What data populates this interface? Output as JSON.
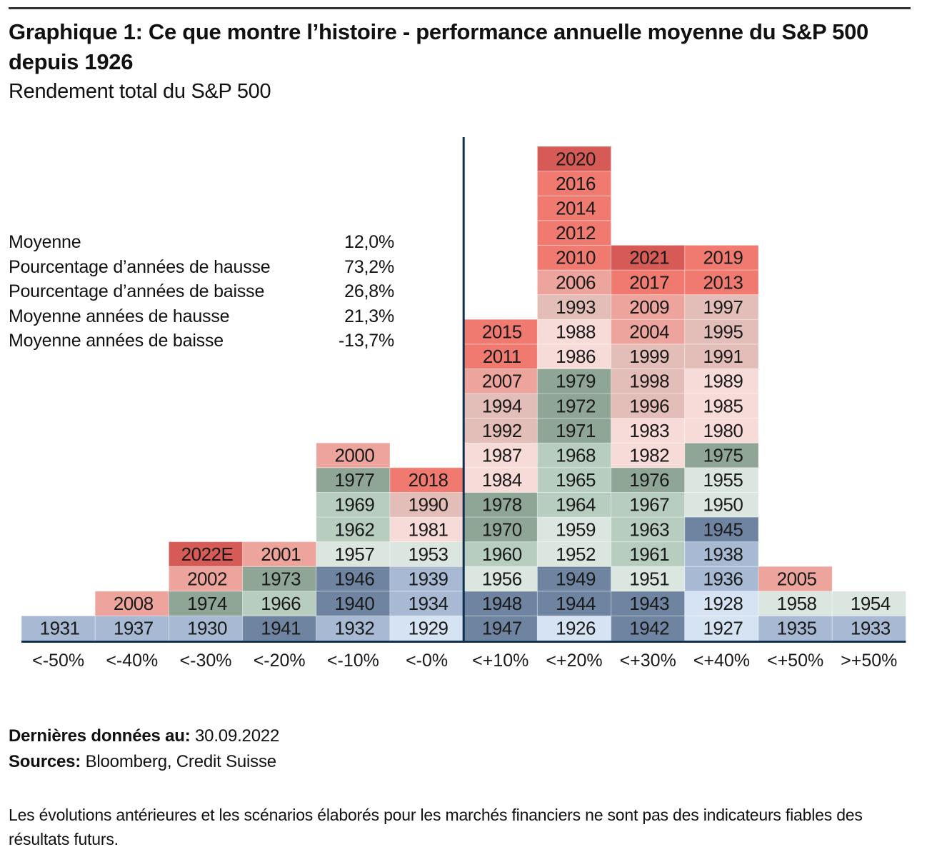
{
  "header": {
    "title": "Graphique 1: Ce que montre l’histoire - performance annuelle moyenne du S&P 500 depuis 1926",
    "subtitle": "Rendement total du S&P 500"
  },
  "stats": [
    {
      "label": "Moyenne",
      "value": "12,0%"
    },
    {
      "label": "Pourcentage d’années de hausse",
      "value": "73,2%"
    },
    {
      "label": "Pourcentage d’années de baisse",
      "value": "26,8%"
    },
    {
      "label": "Moyenne années de hausse",
      "value": "21,3%"
    },
    {
      "label": "Moyenne années de baisse",
      "value": "-13,7%"
    }
  ],
  "palette": {
    "redD": "#d65a55",
    "red": "#f07a70",
    "pinkM": "#eda49d",
    "pinkL": "#e3bdb7",
    "pinkXL": "#f7dbd8",
    "greenD": "#8fa596",
    "greenL": "#b7cdc0",
    "greenXL": "#dbe6e0",
    "blueD": "#6e84a0",
    "blueL": "#a7b9d3",
    "blueXL": "#d6e3f3",
    "axis": "#0f2f4f"
  },
  "chart_data": {
    "type": "table",
    "title": "Rendement total du S&P 500",
    "categories": [
      "<-50%",
      "<-40%",
      "<-30%",
      "<-20%",
      "<-10%",
      "<-0%",
      "<+10%",
      "<+20%",
      "<+30%",
      "<+40%",
      "<+50%",
      ">+50%"
    ],
    "columns": [
      [
        [
          "1931",
          "blueL"
        ]
      ],
      [
        [
          "1937",
          "blueL"
        ],
        [
          "2008",
          "pinkM"
        ]
      ],
      [
        [
          "1930",
          "blueL"
        ],
        [
          "1974",
          "greenD"
        ],
        [
          "2002",
          "pinkM"
        ],
        [
          "2022E",
          "redD"
        ]
      ],
      [
        [
          "1941",
          "blueD"
        ],
        [
          "1966",
          "greenL"
        ],
        [
          "1973",
          "greenD"
        ],
        [
          "2001",
          "pinkM"
        ]
      ],
      [
        [
          "1932",
          "blueL"
        ],
        [
          "1940",
          "blueD"
        ],
        [
          "1946",
          "blueD"
        ],
        [
          "1957",
          "greenXL"
        ],
        [
          "1962",
          "greenL"
        ],
        [
          "1969",
          "greenL"
        ],
        [
          "1977",
          "greenD"
        ],
        [
          "2000",
          "pinkM"
        ]
      ],
      [
        [
          "1929",
          "blueXL"
        ],
        [
          "1934",
          "blueL"
        ],
        [
          "1939",
          "blueL"
        ],
        [
          "1953",
          "greenXL"
        ],
        [
          "1981",
          "pinkXL"
        ],
        [
          "1990",
          "pinkL"
        ],
        [
          "2018",
          "red"
        ]
      ],
      [
        [
          "1947",
          "blueD"
        ],
        [
          "1948",
          "blueD"
        ],
        [
          "1956",
          "greenXL"
        ],
        [
          "1960",
          "greenL"
        ],
        [
          "1970",
          "greenD"
        ],
        [
          "1978",
          "greenD"
        ],
        [
          "1984",
          "pinkXL"
        ],
        [
          "1987",
          "pinkXL"
        ],
        [
          "1992",
          "pinkL"
        ],
        [
          "1994",
          "pinkL"
        ],
        [
          "2007",
          "pinkM"
        ],
        [
          "2011",
          "red"
        ],
        [
          "2015",
          "red"
        ]
      ],
      [
        [
          "1926",
          "blueXL"
        ],
        [
          "1944",
          "blueD"
        ],
        [
          "1949",
          "blueD"
        ],
        [
          "1952",
          "greenXL"
        ],
        [
          "1959",
          "greenXL"
        ],
        [
          "1964",
          "greenL"
        ],
        [
          "1965",
          "greenL"
        ],
        [
          "1968",
          "greenL"
        ],
        [
          "1971",
          "greenD"
        ],
        [
          "1972",
          "greenD"
        ],
        [
          "1979",
          "greenD"
        ],
        [
          "1986",
          "pinkXL"
        ],
        [
          "1988",
          "pinkXL"
        ],
        [
          "1993",
          "pinkL"
        ],
        [
          "2006",
          "pinkM"
        ],
        [
          "2010",
          "red"
        ],
        [
          "2012",
          "red"
        ],
        [
          "2014",
          "red"
        ],
        [
          "2016",
          "red"
        ],
        [
          "2020",
          "redD"
        ]
      ],
      [
        [
          "1942",
          "blueD"
        ],
        [
          "1943",
          "blueD"
        ],
        [
          "1951",
          "greenXL"
        ],
        [
          "1961",
          "greenL"
        ],
        [
          "1963",
          "greenL"
        ],
        [
          "1967",
          "greenL"
        ],
        [
          "1976",
          "greenD"
        ],
        [
          "1982",
          "pinkXL"
        ],
        [
          "1983",
          "pinkXL"
        ],
        [
          "1996",
          "pinkL"
        ],
        [
          "1998",
          "pinkL"
        ],
        [
          "1999",
          "pinkL"
        ],
        [
          "2004",
          "pinkM"
        ],
        [
          "2009",
          "pinkM"
        ],
        [
          "2017",
          "red"
        ],
        [
          "2021",
          "redD"
        ]
      ],
      [
        [
          "1927",
          "blueXL"
        ],
        [
          "1928",
          "blueXL"
        ],
        [
          "1936",
          "blueL"
        ],
        [
          "1938",
          "blueL"
        ],
        [
          "1945",
          "blueD"
        ],
        [
          "1950",
          "greenXL"
        ],
        [
          "1955",
          "greenXL"
        ],
        [
          "1975",
          "greenD"
        ],
        [
          "1980",
          "pinkXL"
        ],
        [
          "1985",
          "pinkXL"
        ],
        [
          "1989",
          "pinkXL"
        ],
        [
          "1991",
          "pinkL"
        ],
        [
          "1995",
          "pinkL"
        ],
        [
          "1997",
          "pinkL"
        ],
        [
          "2013",
          "red"
        ],
        [
          "2019",
          "red"
        ]
      ],
      [
        [
          "1935",
          "blueL"
        ],
        [
          "1958",
          "greenXL"
        ],
        [
          "2005",
          "pinkM"
        ]
      ],
      [
        [
          "1933",
          "blueL"
        ],
        [
          "1954",
          "greenXL"
        ]
      ]
    ],
    "counts": [
      1,
      2,
      4,
      4,
      8,
      7,
      13,
      20,
      16,
      16,
      3,
      2
    ],
    "zero_line_between": [
      "<-0%",
      "<+10%"
    ],
    "xlabel": "",
    "ylabel": ""
  },
  "footer": {
    "date_label": "Dernières données au:",
    "date_value": "30.09.2022",
    "sources_label": "Sources:",
    "sources_value": "Bloomberg, Credit Suisse",
    "disclaimer": "Les évolutions antérieures et les scénarios élaborés pour les marchés financiers ne sont pas des indicateurs fiables des résultats futurs."
  }
}
